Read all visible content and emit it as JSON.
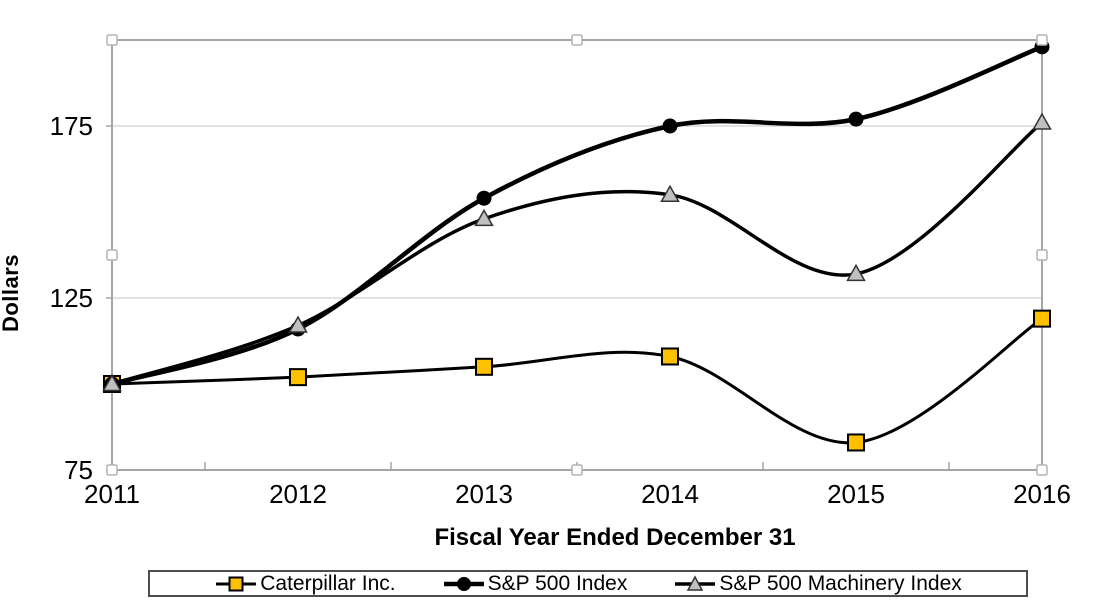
{
  "chart_data": {
    "type": "line",
    "title": "",
    "xlabel": "Fiscal Year Ended December 31",
    "ylabel": "Dollars",
    "x_axis": {
      "categories": [
        "2011",
        "2012",
        "2013",
        "2014",
        "2015",
        "2016"
      ]
    },
    "y_axis": {
      "min": 75,
      "max": 200,
      "ticks": [
        75,
        125,
        175
      ]
    },
    "grid": "horizontal-major",
    "smoothed_lines": true,
    "legend_position": "bottom",
    "selection_handles_visible": true,
    "series": [
      {
        "name": "Caterpillar Inc.",
        "marker": "square",
        "marker_fill": "#FFC000",
        "marker_stroke": "#000000",
        "line_color": "#000000",
        "line_width": 3,
        "values": [
          100,
          102,
          105,
          108,
          83,
          119
        ]
      },
      {
        "name": "S&P 500 Index",
        "marker": "circle",
        "marker_fill": "#000000",
        "marker_stroke": "#000000",
        "line_color": "#000000",
        "line_width": 4.5,
        "values": [
          100,
          116,
          154,
          175,
          177,
          198
        ]
      },
      {
        "name": "S&P 500 Machinery Index",
        "marker": "triangle",
        "marker_fill": "#C0C0C0",
        "marker_stroke": "#333333",
        "line_color": "#000000",
        "line_width": 3.5,
        "values": [
          100,
          117,
          148,
          155,
          132,
          176
        ]
      }
    ],
    "colors": {
      "background": "#FFFFFF",
      "axis": "#A6A6A6",
      "gridline": "#D9D9D9",
      "handle_fill": "#FFFFFF",
      "handle_border": "#B3B3B3",
      "legend_border": "#4D4D4D",
      "text": "#000000"
    }
  }
}
